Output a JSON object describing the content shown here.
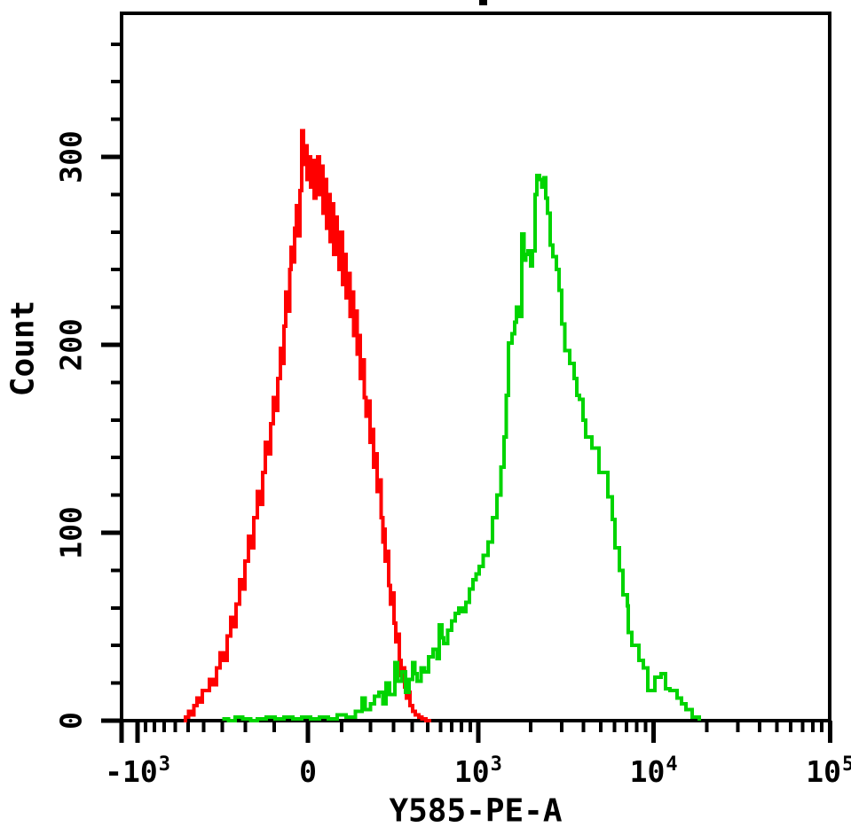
{
  "chart_data": {
    "type": "line",
    "subtype": "flow-cytometry-step-histogram",
    "title": "",
    "title_note": "title cropped out of frame; only a tiny black fragment of one glyph visible at top center",
    "xlabel": "Y585-PE-A",
    "ylabel": "Count",
    "legend_position": "none",
    "grid": false,
    "x_axis": {
      "scale": "biexponential",
      "range": [
        -1240,
        100000
      ],
      "major_ticks": [
        {
          "value": -1000,
          "base": "-10",
          "sup": "3"
        },
        {
          "value": 0,
          "base": "0",
          "sup": ""
        },
        {
          "value": 1000,
          "base": "10",
          "sup": "3"
        },
        {
          "value": 10000,
          "base": "10",
          "sup": "4"
        },
        {
          "value": 100000,
          "base": "10",
          "sup": "5"
        }
      ],
      "minor_ticks": "2-9 per decade, plus mirrored -100..-900 region"
    },
    "y_axis": {
      "range": [
        0,
        376
      ],
      "major_ticks": [
        {
          "value": 0,
          "label": "0"
        },
        {
          "value": 100,
          "label": "100"
        },
        {
          "value": 200,
          "label": "200"
        },
        {
          "value": 300,
          "label": "300"
        }
      ],
      "minor_tick_step": 20
    },
    "frame_color": "#000000",
    "series": [
      {
        "name": "red-histogram",
        "color": "#ff0000",
        "peak_x_approx": 0,
        "peak_count_approx": 314,
        "points": [
          [
            -534,
            0
          ],
          [
            -519,
            2
          ],
          [
            -496,
            5
          ],
          [
            -478,
            3
          ],
          [
            -460,
            8
          ],
          [
            -441,
            12
          ],
          [
            -424,
            10
          ],
          [
            -407,
            16
          ],
          [
            -366,
            22
          ],
          [
            -347,
            19
          ],
          [
            -328,
            28
          ],
          [
            -310,
            36
          ],
          [
            -292,
            32
          ],
          [
            -276,
            45
          ],
          [
            -260,
            55
          ],
          [
            -249,
            50
          ],
          [
            -237,
            62
          ],
          [
            -222,
            75
          ],
          [
            -212,
            70
          ],
          [
            -202,
            85
          ],
          [
            -188,
            98
          ],
          [
            -178,
            92
          ],
          [
            -168,
            108
          ],
          [
            -155,
            122
          ],
          [
            -146,
            115
          ],
          [
            -137,
            132
          ],
          [
            -128,
            148
          ],
          [
            -119,
            142
          ],
          [
            -111,
            158
          ],
          [
            -103,
            172
          ],
          [
            -97,
            165
          ],
          [
            -89,
            182
          ],
          [
            -80,
            198
          ],
          [
            -75,
            190
          ],
          [
            -70,
            210
          ],
          [
            -64,
            228
          ],
          [
            -59,
            218
          ],
          [
            -53,
            240
          ],
          [
            -48,
            252
          ],
          [
            -43,
            244
          ],
          [
            -38,
            262
          ],
          [
            -33,
            274
          ],
          [
            -28,
            258
          ],
          [
            -23,
            282
          ],
          [
            -18,
            314
          ],
          [
            -13,
            296
          ],
          [
            -8,
            306
          ],
          [
            -3,
            288
          ],
          [
            3,
            300
          ],
          [
            8,
            284
          ],
          [
            13,
            298
          ],
          [
            18,
            278
          ],
          [
            23,
            292
          ],
          [
            28,
            300
          ],
          [
            33,
            280
          ],
          [
            38,
            295
          ],
          [
            43,
            270
          ],
          [
            49,
            288
          ],
          [
            54,
            262
          ],
          [
            59,
            280
          ],
          [
            64,
            255
          ],
          [
            69,
            275
          ],
          [
            75,
            248
          ],
          [
            80,
            268
          ],
          [
            86,
            252
          ],
          [
            91,
            240
          ],
          [
            96,
            260
          ],
          [
            102,
            232
          ],
          [
            107,
            248
          ],
          [
            114,
            225
          ],
          [
            120,
            238
          ],
          [
            126,
            215
          ],
          [
            132,
            228
          ],
          [
            138,
            205
          ],
          [
            144,
            218
          ],
          [
            150,
            195
          ],
          [
            156,
            205
          ],
          [
            162,
            182
          ],
          [
            169,
            192
          ],
          [
            176,
            172
          ],
          [
            183,
            162
          ],
          [
            190,
            170
          ],
          [
            197,
            148
          ],
          [
            204,
            155
          ],
          [
            211,
            135
          ],
          [
            219,
            142
          ],
          [
            226,
            122
          ],
          [
            234,
            128
          ],
          [
            242,
            108
          ],
          [
            250,
            95
          ],
          [
            256,
            102
          ],
          [
            261,
            85
          ],
          [
            268,
            90
          ],
          [
            277,
            72
          ],
          [
            285,
            62
          ],
          [
            293,
            68
          ],
          [
            302,
            52
          ],
          [
            310,
            42
          ],
          [
            319,
            46
          ],
          [
            328,
            32
          ],
          [
            337,
            24
          ],
          [
            347,
            28
          ],
          [
            356,
            18
          ],
          [
            366,
            12
          ],
          [
            376,
            15
          ],
          [
            386,
            8
          ],
          [
            402,
            5
          ],
          [
            418,
            3
          ],
          [
            440,
            2
          ],
          [
            462,
            1
          ],
          [
            488,
            0
          ],
          [
            525,
            0
          ]
        ]
      },
      {
        "name": "green-histogram",
        "color": "#00d400",
        "peak_x_approx": 2200,
        "peak_count_approx": 290,
        "points": [
          [
            -300,
            1
          ],
          [
            -270,
            0
          ],
          [
            -240,
            2
          ],
          [
            -210,
            1
          ],
          [
            -180,
            0
          ],
          [
            -155,
            1
          ],
          [
            -125,
            2
          ],
          [
            -97,
            1
          ],
          [
            -70,
            2
          ],
          [
            -43,
            1
          ],
          [
            -18,
            2
          ],
          [
            8,
            1
          ],
          [
            33,
            2
          ],
          [
            59,
            1
          ],
          [
            86,
            3
          ],
          [
            114,
            2
          ],
          [
            144,
            5
          ],
          [
            168,
            12
          ],
          [
            180,
            6
          ],
          [
            200,
            9
          ],
          [
            215,
            13
          ],
          [
            234,
            15
          ],
          [
            250,
            9
          ],
          [
            264,
            20
          ],
          [
            280,
            14
          ],
          [
            306,
            31
          ],
          [
            320,
            21
          ],
          [
            340,
            26
          ],
          [
            361,
            15
          ],
          [
            380,
            22
          ],
          [
            402,
            31
          ],
          [
            415,
            25
          ],
          [
            429,
            21
          ],
          [
            455,
            28
          ],
          [
            480,
            26
          ],
          [
            507,
            34
          ],
          [
            540,
            38
          ],
          [
            570,
            33
          ],
          [
            589,
            51
          ],
          [
            610,
            44
          ],
          [
            626,
            41
          ],
          [
            660,
            48
          ],
          [
            700,
            53
          ],
          [
            733,
            57
          ],
          [
            770,
            60
          ],
          [
            810,
            58
          ],
          [
            848,
            63
          ],
          [
            890,
            70
          ],
          [
            932,
            75
          ],
          [
            970,
            78
          ],
          [
            1013,
            82
          ],
          [
            1070,
            88
          ],
          [
            1140,
            95
          ],
          [
            1210,
            108
          ],
          [
            1283,
            120
          ],
          [
            1350,
            135
          ],
          [
            1409,
            151
          ],
          [
            1450,
            173
          ],
          [
            1494,
            201
          ],
          [
            1566,
            206
          ],
          [
            1620,
            212
          ],
          [
            1660,
            220
          ],
          [
            1720,
            215
          ],
          [
            1781,
            259
          ],
          [
            1830,
            245
          ],
          [
            1880,
            248
          ],
          [
            1933,
            250
          ],
          [
            2000,
            242
          ],
          [
            2048,
            250
          ],
          [
            2120,
            280
          ],
          [
            2172,
            290
          ],
          [
            2250,
            288
          ],
          [
            2320,
            284
          ],
          [
            2382,
            289
          ],
          [
            2440,
            278
          ],
          [
            2500,
            270
          ],
          [
            2584,
            253
          ],
          [
            2676,
            247
          ],
          [
            2800,
            240
          ],
          [
            2904,
            229
          ],
          [
            3007,
            211
          ],
          [
            3140,
            197
          ],
          [
            3340,
            190
          ],
          [
            3540,
            182
          ],
          [
            3663,
            173
          ],
          [
            3790,
            171
          ],
          [
            3973,
            160
          ],
          [
            4114,
            151
          ],
          [
            4462,
            145
          ],
          [
            4892,
            132
          ],
          [
            5495,
            119
          ],
          [
            5823,
            107
          ],
          [
            6029,
            92
          ],
          [
            6391,
            80
          ],
          [
            6692,
            67
          ],
          [
            7092,
            61
          ],
          [
            7180,
            47
          ],
          [
            7516,
            40
          ],
          [
            8247,
            32
          ],
          [
            8741,
            28
          ],
          [
            9264,
            16
          ],
          [
            10157,
            23
          ],
          [
            11016,
            25
          ],
          [
            11673,
            17
          ],
          [
            12363,
            16
          ],
          [
            13567,
            12
          ],
          [
            14377,
            9
          ],
          [
            15242,
            6
          ],
          [
            16524,
            2
          ],
          [
            18144,
            0
          ]
        ]
      }
    ]
  }
}
